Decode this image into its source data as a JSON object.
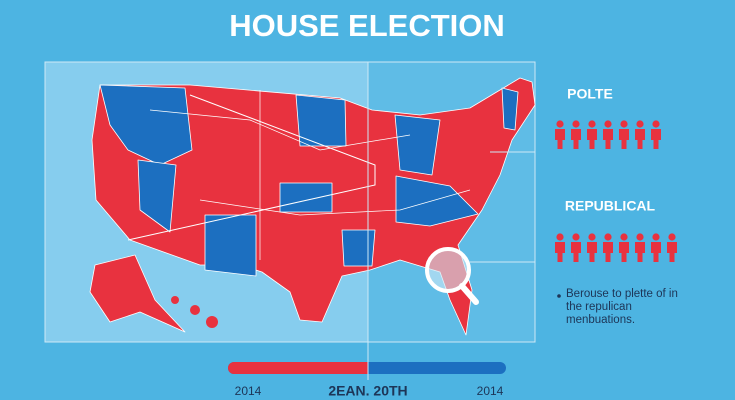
{
  "header": {
    "title": "HOUSE ELECTION"
  },
  "legend": {
    "groups": [
      {
        "label": "POLTE"
      },
      {
        "label": "REPUBLICAL"
      }
    ],
    "note": "Berouse to plette of in the repulican menbuations."
  },
  "timeline": {
    "start": "2014",
    "center": "2EAN. 20TH",
    "end": "2014"
  }
}
